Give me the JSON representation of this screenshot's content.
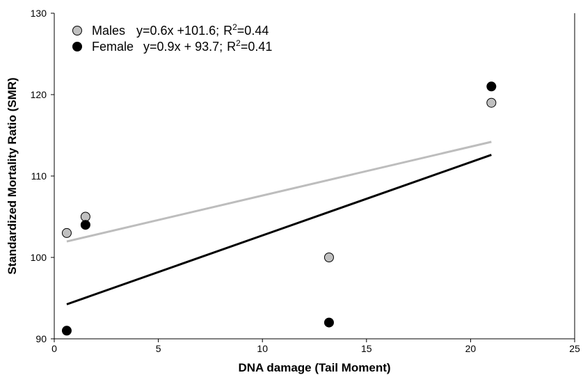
{
  "chart_data": {
    "type": "scatter",
    "title": "",
    "xlabel": "DNA damage (Tail Moment)",
    "ylabel": "Standardized Mortality Ratio (SMR)",
    "xlim": [
      0,
      25
    ],
    "ylim": [
      90,
      130
    ],
    "x_ticks": [
      "0",
      "5",
      "10",
      "15",
      "20",
      "25"
    ],
    "y_ticks": [
      "90",
      "100",
      "110",
      "120",
      "130"
    ],
    "grid": false,
    "legend_position": "top-left",
    "series": [
      {
        "name": "Males",
        "equation": "y=0.6x +101.6;",
        "r2_label": "R",
        "r2_sup": "2",
        "r2_value": "=0.44",
        "marker_color": "#c0c0c0",
        "line_color": "#bdbdbd",
        "points": [
          {
            "x": 0.6,
            "y": 103
          },
          {
            "x": 1.5,
            "y": 105
          },
          {
            "x": 13.2,
            "y": 100
          },
          {
            "x": 21,
            "y": 119
          }
        ],
        "trend": {
          "slope": 0.6,
          "intercept": 101.6,
          "x_start": 0.6,
          "x_end": 21
        }
      },
      {
        "name": "Female",
        "equation": "y=0.9x + 93.7;",
        "r2_label": "R",
        "r2_sup": "2",
        "r2_value": "=0.41",
        "marker_color": "#000000",
        "line_color": "#000000",
        "points": [
          {
            "x": 0.6,
            "y": 91
          },
          {
            "x": 1.5,
            "y": 104
          },
          {
            "x": 13.2,
            "y": 92
          },
          {
            "x": 21,
            "y": 121
          }
        ],
        "trend": {
          "slope": 0.9,
          "intercept": 93.7,
          "x_start": 0.6,
          "x_end": 21
        }
      }
    ]
  }
}
